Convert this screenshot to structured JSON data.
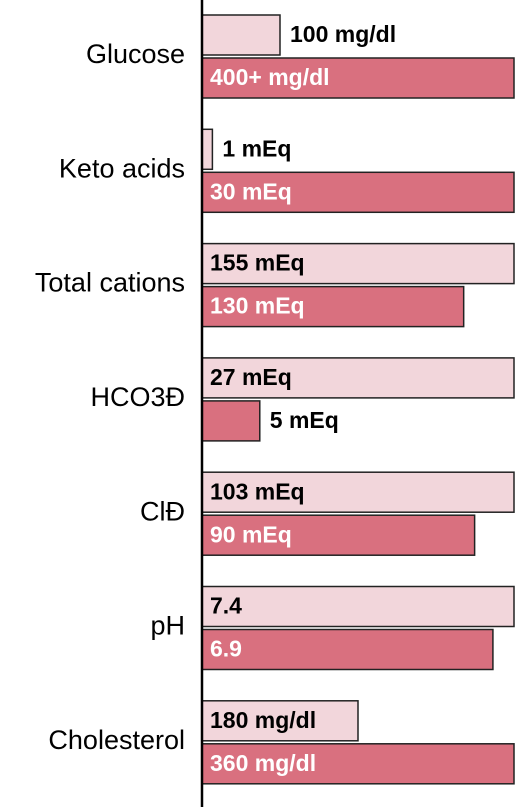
{
  "chart_data": {
    "type": "bar",
    "categories": [
      "Glucose",
      "Keto acids",
      "Total cations",
      "HCO3Ð",
      "ClÐ",
      "pH",
      "Cholesterol"
    ],
    "series": [
      {
        "color": "#f2d6db",
        "values": [
          100,
          1,
          155,
          27,
          103,
          7.4,
          180
        ],
        "value_labels": [
          "100 mg/dl",
          "1 mEq",
          "155 mEq",
          "27 mEq",
          "103 mEq",
          "7.4",
          "180 mg/dl"
        ]
      },
      {
        "color": "#d9707f",
        "values": [
          400,
          30,
          130,
          5,
          90,
          6.9,
          360
        ],
        "value_labels": [
          "400+ mg/dl",
          "30 mEq",
          "130 mEq",
          "5 mEq",
          "90 mEq",
          "6.9",
          "360 mg/dl"
        ]
      }
    ]
  }
}
